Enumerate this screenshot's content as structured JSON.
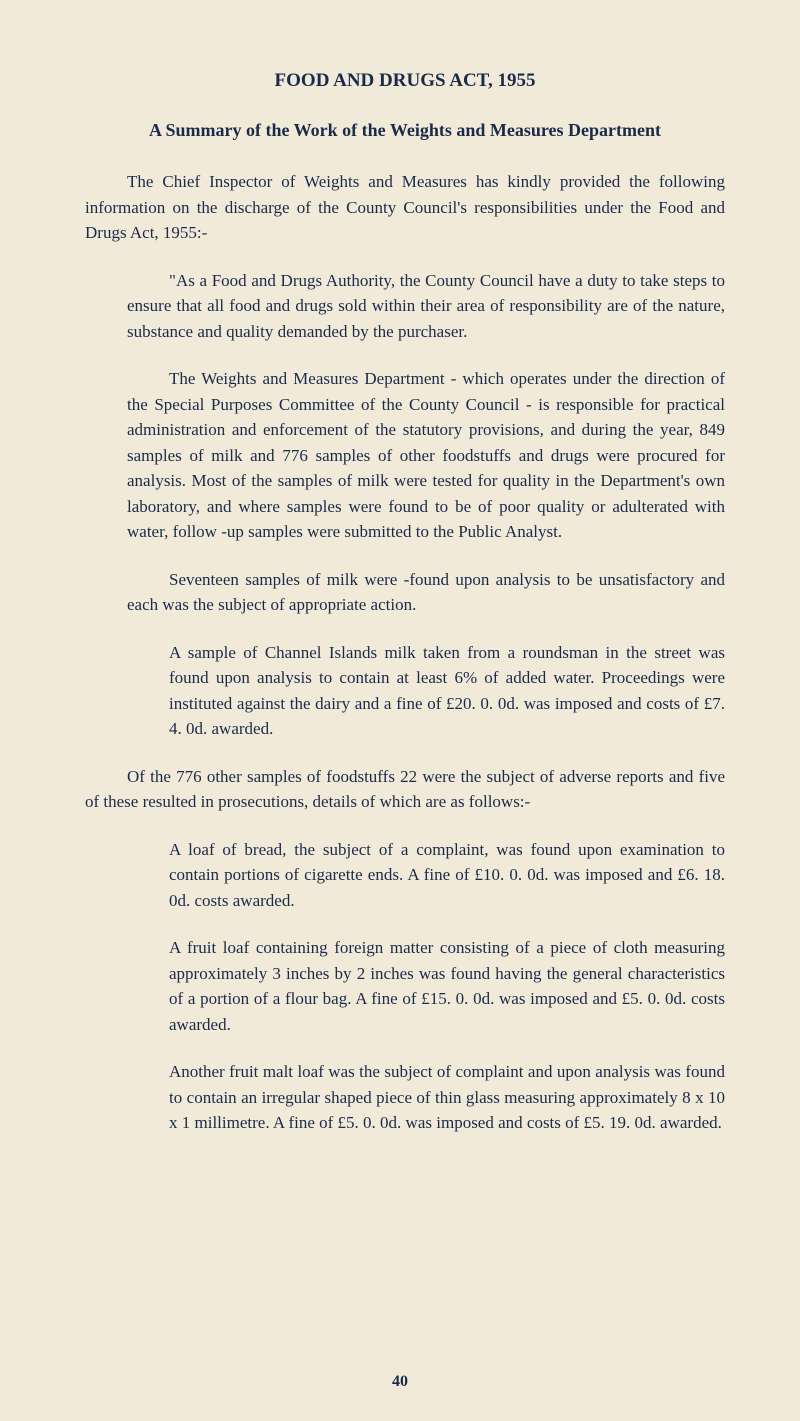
{
  "title": "FOOD AND DRUGS ACT, 1955",
  "subtitle": "A Summary of the Work of the Weights and Measures Department",
  "paragraphs": {
    "p1": "The Chief Inspector of Weights and Measures has kindly provided the following information on the discharge of the County Council's responsibilities under the Food and Drugs Act, 1955:-",
    "p2": "\"As a Food and Drugs Authority, the County Council have a duty to take steps to ensure that all food and drugs sold within their area of responsibility are of the nature, substance and quality demanded by the purchaser.",
    "p3": "The Weights and Measures Department - which operates under the direction of the Special Purposes Committee of the County Council - is responsible for practical administration and enforcement of the statutory provisions, and during the year, 849 samples of milk and 776 samples of other foodstuffs and drugs were procured for analysis. Most of the samples of milk were tested for quality in the Department's own laboratory, and where samples were found to be of poor quality or adulterated with water, follow -up samples were submitted to the Public Analyst.",
    "p4": "Seventeen samples of milk were -found upon analysis to be unsatisfactory and each was the subject of appropriate action.",
    "p5": "A sample of Channel Islands milk taken from a roundsman in the street was found upon analysis to contain at least 6% of added water. Proceedings were instituted against the dairy and a fine of £20. 0. 0d. was imposed and costs of £7. 4. 0d. awarded.",
    "p6": "Of the 776 other samples of foodstuffs 22 were the subject of adverse reports and five of these resulted in prosecutions, details of which are as follows:-",
    "p7": "A loaf of bread, the subject of a complaint, was found upon examination to contain portions of cigarette ends. A fine of £10. 0. 0d. was imposed and £6. 18. 0d. costs awarded.",
    "p8": "A fruit loaf containing foreign matter consisting of a piece of cloth measuring approximately 3 inches by 2 inches was found having the general characteristics of a portion of a flour bag. A fine of £15. 0. 0d. was imposed and £5. 0. 0d. costs awarded.",
    "p9": "Another fruit malt loaf was the subject of complaint and upon analysis was found to contain an irregular shaped piece of thin glass measuring approximately 8 x 10 x 1 millimetre. A fine of £5. 0. 0d. was imposed and costs of £5. 19. 0d. awarded."
  },
  "pageNumber": "40",
  "colors": {
    "background": "#f2ead9",
    "text": "#1a2a4a"
  },
  "typography": {
    "fontFamily": "Georgia, Times New Roman, serif",
    "titleSize": 19,
    "subtitleSize": 18,
    "bodySize": 17,
    "lineHeight": 1.5
  }
}
